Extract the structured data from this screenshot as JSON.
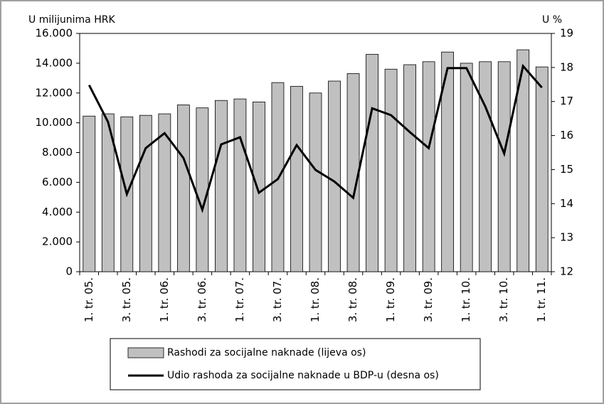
{
  "chart_data": {
    "type": "bar_line",
    "y_label": "U milijunima HRK",
    "y2_label": "U %",
    "categories": [
      "1. tr. 05.",
      null,
      "3. tr. 05.",
      null,
      "1. tr. 06.",
      null,
      "3. tr. 06.",
      null,
      "1. tr. 07.",
      null,
      "3. tr. 07.",
      null,
      "1. tr. 08.",
      null,
      "3. tr. 08.",
      null,
      "1. tr. 09.",
      null,
      "3. tr. 09.",
      null,
      "1. tr. 10.",
      null,
      "3. tr. 10.",
      null,
      "1. tr. 11."
    ],
    "series": [
      {
        "name": "Rashodi za socijalne naknade (lijeva os)",
        "type": "bar",
        "color": "#c0c0c0",
        "values": [
          10450,
          10600,
          10400,
          10500,
          10600,
          11200,
          11000,
          11500,
          11600,
          11400,
          12700,
          12450,
          12000,
          12800,
          13300,
          14600,
          13600,
          13900,
          14100,
          14750,
          14000,
          14100,
          14100,
          14900,
          13750
        ]
      },
      {
        "name": "Udio rashoda za socijalne naknade u BDP-u (desna os)",
        "type": "line",
        "axis": "y2",
        "color": "#000000",
        "values": [
          17.48,
          16.4,
          14.28,
          15.63,
          16.07,
          15.34,
          13.82,
          15.74,
          15.95,
          14.32,
          14.72,
          15.72,
          14.99,
          14.65,
          14.17,
          16.8,
          16.6,
          16.1,
          15.63,
          17.98,
          17.98,
          16.85,
          15.47,
          18.04,
          17.41
        ]
      }
    ],
    "ylim": [
      0,
      16000
    ],
    "yticks": [
      0,
      {
        "value": 2000,
        "label": "2.000"
      },
      {
        "value": 4000,
        "label": "4.000"
      },
      {
        "value": 6000,
        "label": "6.000"
      },
      {
        "value": 8000,
        "label": "8.000"
      },
      {
        "value": 10000,
        "label": "10.000"
      },
      {
        "value": 12000,
        "label": "12.000"
      },
      {
        "value": 14000,
        "label": "14.000"
      },
      {
        "value": 16000,
        "label": "16.000"
      }
    ],
    "y2lim": [
      12,
      19
    ],
    "y2ticks": [
      12,
      13,
      14,
      15,
      16,
      17,
      18,
      19
    ],
    "grid": false,
    "legend": "bottom"
  }
}
